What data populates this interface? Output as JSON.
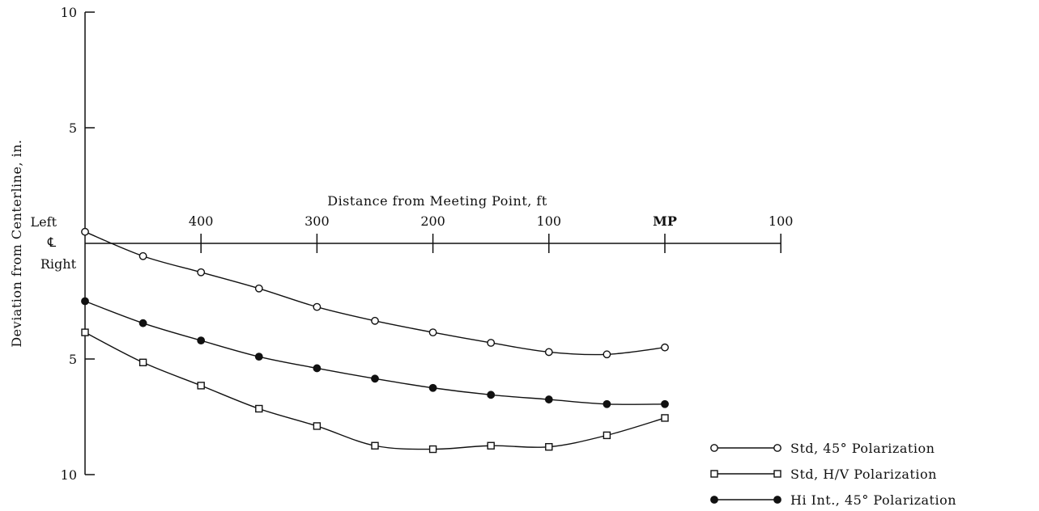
{
  "chart_data": {
    "type": "line",
    "xlabel": "Distance from Meeting Point, ft",
    "ylabel": "Deviation from Centerline, in.",
    "x_ticks": [
      {
        "value": 400,
        "label": "400"
      },
      {
        "value": 300,
        "label": "300"
      },
      {
        "value": 200,
        "label": "200"
      },
      {
        "value": 100,
        "label": "100"
      },
      {
        "value": 0,
        "label": "MP"
      },
      {
        "value": -100,
        "label": "100"
      }
    ],
    "y_ticks": [
      {
        "value": 10,
        "label": "10"
      },
      {
        "value": 5,
        "label": "5"
      },
      {
        "value": -5,
        "label": "5"
      },
      {
        "value": -10,
        "label": "10"
      }
    ],
    "centerline_labels": {
      "left": "Left",
      "centerline": "℄",
      "right": "Right"
    },
    "xlim": [
      -100,
      500
    ],
    "ylim": [
      -10,
      10
    ],
    "series": [
      {
        "name": "Std, 45° Polarization",
        "marker": "open-circle",
        "points": [
          [
            500,
            0.5
          ],
          [
            450,
            -0.55
          ],
          [
            400,
            -1.25
          ],
          [
            350,
            -1.95
          ],
          [
            300,
            -2.75
          ],
          [
            250,
            -3.35
          ],
          [
            200,
            -3.85
          ],
          [
            150,
            -4.3
          ],
          [
            100,
            -4.7
          ],
          [
            50,
            -4.8
          ],
          [
            0,
            -4.5
          ]
        ]
      },
      {
        "name": "Std, H/V Polarization",
        "marker": "open-square",
        "points": [
          [
            500,
            -3.85
          ],
          [
            450,
            -5.15
          ],
          [
            400,
            -6.15
          ],
          [
            350,
            -7.15
          ],
          [
            300,
            -7.9
          ],
          [
            250,
            -8.75
          ],
          [
            200,
            -8.9
          ],
          [
            150,
            -8.75
          ],
          [
            100,
            -8.8
          ],
          [
            50,
            -8.3
          ],
          [
            0,
            -7.55
          ]
        ]
      },
      {
        "name": "Hi Int., 45° Polarization",
        "marker": "filled-circle",
        "points": [
          [
            500,
            -2.5
          ],
          [
            450,
            -3.45
          ],
          [
            400,
            -4.2
          ],
          [
            350,
            -4.9
          ],
          [
            300,
            -5.4
          ],
          [
            250,
            -5.85
          ],
          [
            200,
            -6.25
          ],
          [
            150,
            -6.55
          ],
          [
            100,
            -6.75
          ],
          [
            50,
            -6.95
          ],
          [
            0,
            -6.95
          ]
        ]
      }
    ]
  }
}
